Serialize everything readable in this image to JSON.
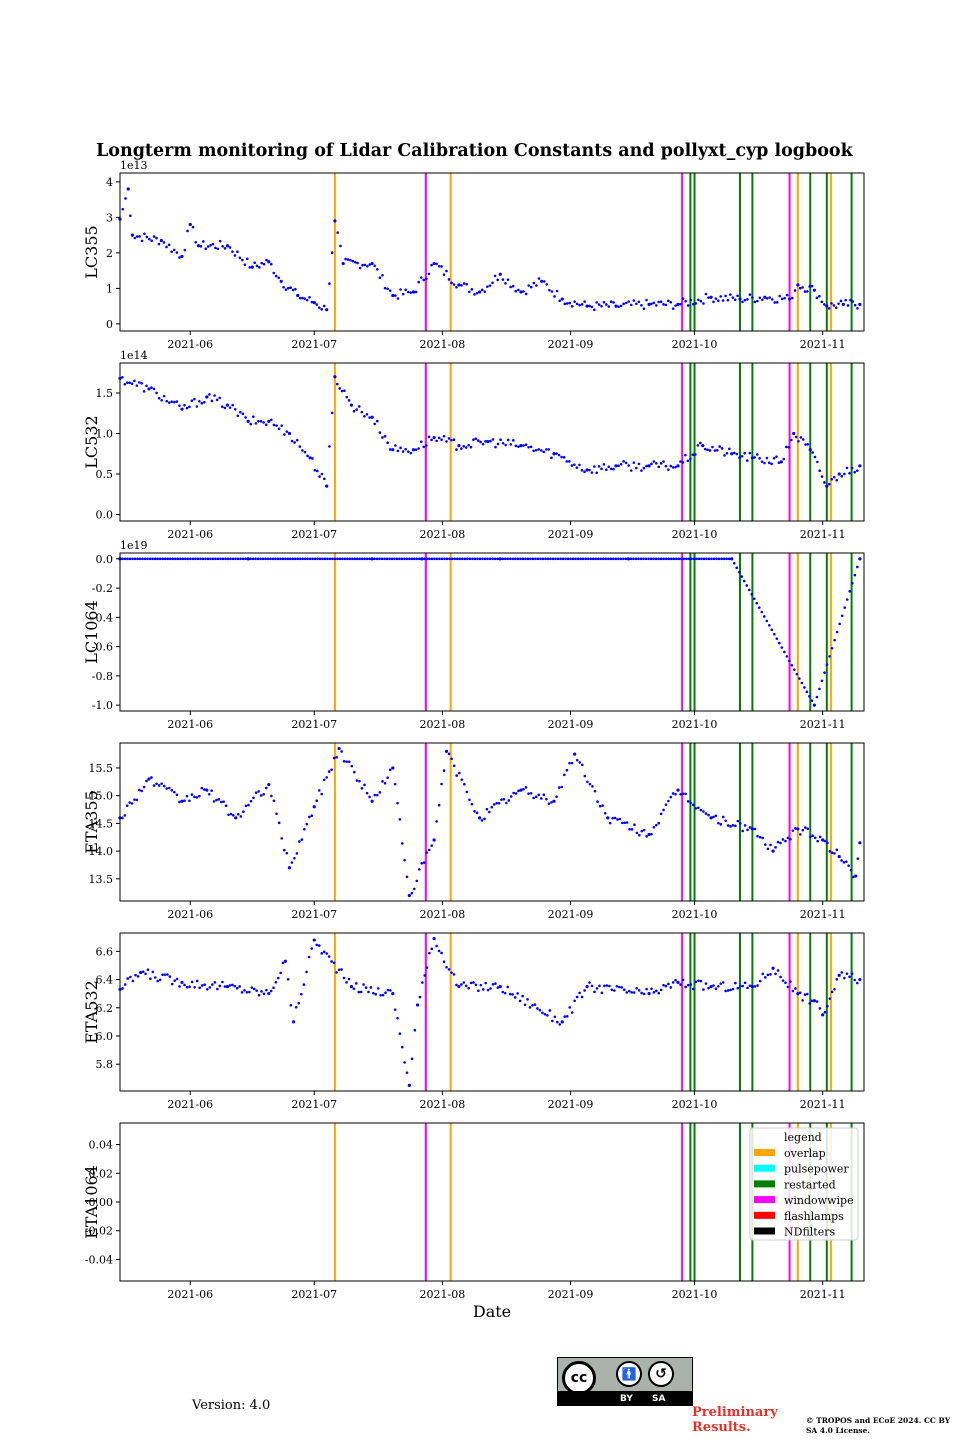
{
  "title": "Longterm monitoring of Lidar Calibration Constants and pollyxt_cyp logbook",
  "xlabel": "Date",
  "version": "Version: 4.0",
  "preliminary": "Preliminary Results.",
  "copyright": "© TROPOS and ECoE 2024. CC BY SA 4.0 License.",
  "cc_badge": {
    "cc": "cc",
    "by": "BY",
    "sa": "SA",
    "by_icon": "person-icon",
    "sa_icon": "share-alike-icon"
  },
  "chart_data": {
    "type": "scatter",
    "x_axis": {
      "type": "date",
      "range": [
        "2021-05-15",
        "2021-11-11"
      ],
      "ticks": [
        "2021-06",
        "2021-07",
        "2021-08",
        "2021-09",
        "2021-10",
        "2021-11"
      ],
      "label": "Date"
    },
    "point_color": "#0000ff",
    "legend": {
      "title": "legend",
      "placement": "upper-right",
      "entries": [
        {
          "name": "overlap",
          "color": "#ffa500"
        },
        {
          "name": "pulsepower",
          "color": "#00ffff"
        },
        {
          "name": "restarted",
          "color": "#008000"
        },
        {
          "name": "windowwipe",
          "color": "#ff00ff"
        },
        {
          "name": "flashlamps",
          "color": "#ff0000"
        },
        {
          "name": "NDfilters",
          "color": "#000000"
        }
      ]
    },
    "events": [
      {
        "type": "overlap",
        "date": "2021-07-06"
      },
      {
        "type": "windowwipe",
        "date": "2021-07-28"
      },
      {
        "type": "overlap",
        "date": "2021-08-03"
      },
      {
        "type": "windowwipe",
        "date": "2021-09-28"
      },
      {
        "type": "restarted",
        "date": "2021-09-30"
      },
      {
        "type": "restarted",
        "date": "2021-10-01"
      },
      {
        "type": "restarted",
        "date": "2021-10-12"
      },
      {
        "type": "restarted",
        "date": "2021-10-15"
      },
      {
        "type": "windowwipe",
        "date": "2021-10-24"
      },
      {
        "type": "overlap",
        "date": "2021-10-26"
      },
      {
        "type": "restarted",
        "date": "2021-10-29"
      },
      {
        "type": "restarted",
        "date": "2021-11-02"
      },
      {
        "type": "overlap",
        "date": "2021-11-03"
      },
      {
        "type": "restarted",
        "date": "2021-11-08"
      }
    ],
    "panels": [
      {
        "ylabel": "LC355",
        "exponent": "1e13",
        "ylim": [
          -0.2,
          4.25
        ],
        "yticks": [
          0,
          1,
          2,
          3,
          4
        ],
        "series": [
          {
            "date": "2021-05-15",
            "value": 2.95
          },
          {
            "date": "2021-05-17",
            "value": 3.8
          },
          {
            "date": "2021-05-18",
            "value": 2.5
          },
          {
            "date": "2021-05-25",
            "value": 2.35
          },
          {
            "date": "2021-05-30",
            "value": 1.9
          },
          {
            "date": "2021-06-01",
            "value": 2.8
          },
          {
            "date": "2021-06-03",
            "value": 2.2
          },
          {
            "date": "2021-06-10",
            "value": 2.2
          },
          {
            "date": "2021-06-16",
            "value": 1.6
          },
          {
            "date": "2021-06-20",
            "value": 1.75
          },
          {
            "date": "2021-06-23",
            "value": 1.2
          },
          {
            "date": "2021-06-27",
            "value": 0.8
          },
          {
            "date": "2021-07-01",
            "value": 0.6
          },
          {
            "date": "2021-07-04",
            "value": 0.4
          },
          {
            "date": "2021-07-06",
            "value": 2.9
          },
          {
            "date": "2021-07-08",
            "value": 1.7
          },
          {
            "date": "2021-07-15",
            "value": 1.7
          },
          {
            "date": "2021-07-20",
            "value": 0.8
          },
          {
            "date": "2021-07-25",
            "value": 0.9
          },
          {
            "date": "2021-07-30",
            "value": 1.7
          },
          {
            "date": "2021-08-05",
            "value": 1.1
          },
          {
            "date": "2021-08-10",
            "value": 0.9
          },
          {
            "date": "2021-08-15",
            "value": 1.4
          },
          {
            "date": "2021-08-20",
            "value": 0.9
          },
          {
            "date": "2021-08-25",
            "value": 1.2
          },
          {
            "date": "2021-08-30",
            "value": 0.7
          },
          {
            "date": "2021-09-05",
            "value": 0.5
          },
          {
            "date": "2021-09-12",
            "value": 0.5
          },
          {
            "date": "2021-09-20",
            "value": 0.55
          },
          {
            "date": "2021-09-27",
            "value": 0.55
          },
          {
            "date": "2021-10-05",
            "value": 0.75
          },
          {
            "date": "2021-10-12",
            "value": 0.7
          },
          {
            "date": "2021-10-18",
            "value": 0.75
          },
          {
            "date": "2021-10-24",
            "value": 0.7
          },
          {
            "date": "2021-10-26",
            "value": 1.1
          },
          {
            "date": "2021-10-30",
            "value": 0.95
          },
          {
            "date": "2021-11-02",
            "value": 0.5
          },
          {
            "date": "2021-11-06",
            "value": 0.55
          },
          {
            "date": "2021-11-10",
            "value": 0.55
          }
        ]
      },
      {
        "ylabel": "LC532",
        "exponent": "1e14",
        "ylim": [
          -0.08,
          1.87
        ],
        "yticks": [
          0.0,
          0.5,
          1.0,
          1.5
        ],
        "series": [
          {
            "date": "2021-05-15",
            "value": 1.68
          },
          {
            "date": "2021-05-22",
            "value": 1.55
          },
          {
            "date": "2021-05-30",
            "value": 1.3
          },
          {
            "date": "2021-06-05",
            "value": 1.45
          },
          {
            "date": "2021-06-10",
            "value": 1.35
          },
          {
            "date": "2021-06-15",
            "value": 1.15
          },
          {
            "date": "2021-06-20",
            "value": 1.15
          },
          {
            "date": "2021-06-25",
            "value": 1.0
          },
          {
            "date": "2021-06-30",
            "value": 0.7
          },
          {
            "date": "2021-07-04",
            "value": 0.35
          },
          {
            "date": "2021-07-06",
            "value": 1.7
          },
          {
            "date": "2021-07-10",
            "value": 1.35
          },
          {
            "date": "2021-07-15",
            "value": 1.2
          },
          {
            "date": "2021-07-20",
            "value": 0.8
          },
          {
            "date": "2021-07-25",
            "value": 0.8
          },
          {
            "date": "2021-07-30",
            "value": 0.95
          },
          {
            "date": "2021-08-05",
            "value": 0.85
          },
          {
            "date": "2021-08-12",
            "value": 0.9
          },
          {
            "date": "2021-08-20",
            "value": 0.85
          },
          {
            "date": "2021-08-28",
            "value": 0.75
          },
          {
            "date": "2021-09-05",
            "value": 0.55
          },
          {
            "date": "2021-09-12",
            "value": 0.6
          },
          {
            "date": "2021-09-20",
            "value": 0.6
          },
          {
            "date": "2021-09-27",
            "value": 0.6
          },
          {
            "date": "2021-10-03",
            "value": 0.85
          },
          {
            "date": "2021-10-10",
            "value": 0.75
          },
          {
            "date": "2021-10-15",
            "value": 0.7
          },
          {
            "date": "2021-10-22",
            "value": 0.65
          },
          {
            "date": "2021-10-25",
            "value": 1.0
          },
          {
            "date": "2021-10-29",
            "value": 0.8
          },
          {
            "date": "2021-11-02",
            "value": 0.35
          },
          {
            "date": "2021-11-05",
            "value": 0.5
          },
          {
            "date": "2021-11-10",
            "value": 0.6
          }
        ]
      },
      {
        "ylabel": "LC1064",
        "exponent": "1e19",
        "ylim": [
          -1.04,
          0.04
        ],
        "yticks": [
          0.0,
          -0.2,
          -0.4,
          -0.6,
          -0.8,
          -1.0
        ],
        "series": [
          {
            "date": "2021-05-15",
            "value": 0.0
          },
          {
            "date": "2021-06-15",
            "value": 0.0
          },
          {
            "date": "2021-07-15",
            "value": 0.0
          },
          {
            "date": "2021-07-27",
            "value": 0.0
          },
          {
            "date": "2021-08-15",
            "value": 0.0
          },
          {
            "date": "2021-09-15",
            "value": 0.0
          },
          {
            "date": "2021-10-10",
            "value": 0.0
          },
          {
            "date": "2021-10-30",
            "value": -1.0
          },
          {
            "date": "2021-11-10",
            "value": 0.0
          }
        ]
      },
      {
        "ylabel": "ETA355",
        "exponent": "",
        "ylim": [
          13.1,
          15.95
        ],
        "yticks": [
          13.5,
          14.0,
          14.5,
          15.0,
          15.5
        ],
        "series": [
          {
            "date": "2021-05-15",
            "value": 14.6
          },
          {
            "date": "2021-05-22",
            "value": 15.3
          },
          {
            "date": "2021-05-30",
            "value": 14.9
          },
          {
            "date": "2021-06-05",
            "value": 15.1
          },
          {
            "date": "2021-06-12",
            "value": 14.6
          },
          {
            "date": "2021-06-20",
            "value": 15.2
          },
          {
            "date": "2021-06-25",
            "value": 13.7
          },
          {
            "date": "2021-07-01",
            "value": 14.8
          },
          {
            "date": "2021-07-07",
            "value": 15.85
          },
          {
            "date": "2021-07-15",
            "value": 14.9
          },
          {
            "date": "2021-07-20",
            "value": 15.5
          },
          {
            "date": "2021-07-24",
            "value": 13.2
          },
          {
            "date": "2021-07-30",
            "value": 14.2
          },
          {
            "date": "2021-08-02",
            "value": 15.8
          },
          {
            "date": "2021-08-10",
            "value": 14.6
          },
          {
            "date": "2021-08-20",
            "value": 15.1
          },
          {
            "date": "2021-08-28",
            "value": 14.9
          },
          {
            "date": "2021-09-02",
            "value": 15.75
          },
          {
            "date": "2021-09-10",
            "value": 14.6
          },
          {
            "date": "2021-09-20",
            "value": 14.3
          },
          {
            "date": "2021-09-27",
            "value": 15.1
          },
          {
            "date": "2021-10-05",
            "value": 14.6
          },
          {
            "date": "2021-10-15",
            "value": 14.4
          },
          {
            "date": "2021-10-20",
            "value": 14.0
          },
          {
            "date": "2021-10-26",
            "value": 14.4
          },
          {
            "date": "2021-11-01",
            "value": 14.2
          },
          {
            "date": "2021-11-05",
            "value": 13.9
          },
          {
            "date": "2021-11-09",
            "value": 13.55
          },
          {
            "date": "2021-11-10",
            "value": 14.15
          }
        ]
      },
      {
        "ylabel": "ETA532",
        "exponent": "",
        "ylim": [
          5.61,
          6.73
        ],
        "yticks": [
          5.8,
          6.0,
          6.2,
          6.4,
          6.6
        ],
        "series": [
          {
            "date": "2021-05-15",
            "value": 6.33
          },
          {
            "date": "2021-05-20",
            "value": 6.45
          },
          {
            "date": "2021-05-30",
            "value": 6.38
          },
          {
            "date": "2021-06-10",
            "value": 6.35
          },
          {
            "date": "2021-06-20",
            "value": 6.3
          },
          {
            "date": "2021-06-24",
            "value": 6.53
          },
          {
            "date": "2021-06-26",
            "value": 6.1
          },
          {
            "date": "2021-07-01",
            "value": 6.68
          },
          {
            "date": "2021-07-10",
            "value": 6.35
          },
          {
            "date": "2021-07-20",
            "value": 6.3
          },
          {
            "date": "2021-07-24",
            "value": 5.65
          },
          {
            "date": "2021-07-26",
            "value": 6.22
          },
          {
            "date": "2021-07-30",
            "value": 6.69
          },
          {
            "date": "2021-08-05",
            "value": 6.35
          },
          {
            "date": "2021-08-15",
            "value": 6.35
          },
          {
            "date": "2021-08-30",
            "value": 6.1
          },
          {
            "date": "2021-09-05",
            "value": 6.35
          },
          {
            "date": "2021-09-20",
            "value": 6.3
          },
          {
            "date": "2021-09-27",
            "value": 6.38
          },
          {
            "date": "2021-10-05",
            "value": 6.35
          },
          {
            "date": "2021-10-15",
            "value": 6.35
          },
          {
            "date": "2021-10-20",
            "value": 6.48
          },
          {
            "date": "2021-10-26",
            "value": 6.3
          },
          {
            "date": "2021-10-30",
            "value": 6.25
          },
          {
            "date": "2021-11-01",
            "value": 6.15
          },
          {
            "date": "2021-11-05",
            "value": 6.43
          },
          {
            "date": "2021-11-10",
            "value": 6.4
          }
        ]
      },
      {
        "ylabel": "ETA1064",
        "exponent": "",
        "ylim": [
          -0.055,
          0.055
        ],
        "yticks": [
          0.04,
          0.02,
          0.0,
          -0.02,
          -0.04
        ],
        "series": []
      }
    ]
  }
}
